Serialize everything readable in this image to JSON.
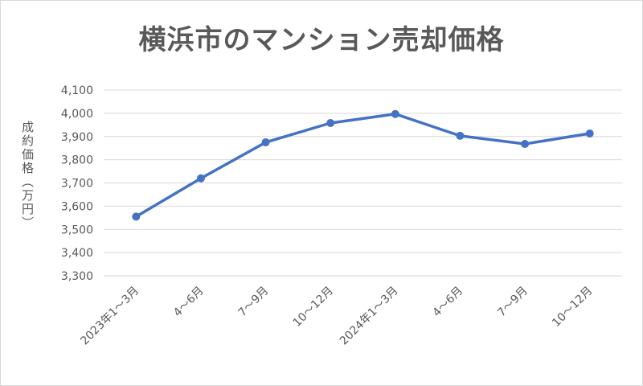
{
  "chart_data": {
    "type": "line",
    "title": "横浜市のマンション売却価格",
    "ylabel": "成約価格（万円）",
    "xlabel": "",
    "categories": [
      "2023年1～3月",
      "4～6月",
      "7～9月",
      "10～12月",
      "2024年1～3月",
      "4～6月",
      "7～9月",
      "10～12月"
    ],
    "series": [
      {
        "values": [
          3555,
          3720,
          3875,
          3958,
          3997,
          3903,
          3868,
          3913
        ]
      }
    ],
    "ylim": [
      3300,
      4100
    ],
    "yticks": [
      "3,300",
      "3,400",
      "3,500",
      "3,600",
      "3,700",
      "3,800",
      "3,900",
      "4,000",
      "4,100"
    ],
    "ytick_values": [
      3300,
      3400,
      3500,
      3600,
      3700,
      3800,
      3900,
      4000,
      4100
    ],
    "grid": true,
    "legend": "none",
    "line_color": "#4472c4",
    "grid_color": "#d9d9d9"
  }
}
